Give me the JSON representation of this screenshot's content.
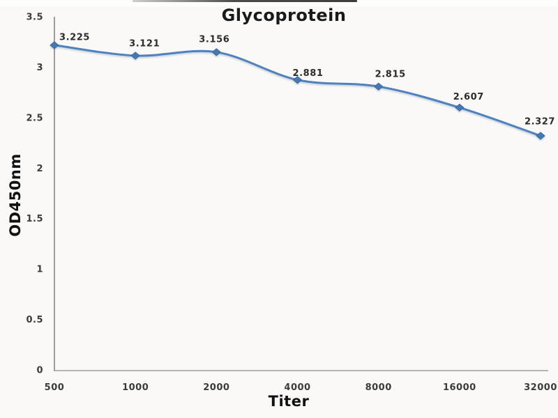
{
  "chart_data": {
    "type": "line",
    "title": "Glycoprotein",
    "xlabel": "Titer",
    "ylabel": "OD450nm",
    "categories": [
      "500",
      "1000",
      "2000",
      "4000",
      "8000",
      "16000",
      "32000"
    ],
    "series": [
      {
        "name": "OD450nm",
        "values": [
          3.225,
          3.121,
          3.156,
          2.881,
          2.815,
          2.607,
          2.327
        ],
        "data_labels": [
          "3.225",
          "3.121",
          "3.156",
          "2.881",
          "2.815",
          "2.607",
          "2.327"
        ]
      }
    ],
    "y_ticks": [
      0,
      0.5,
      1,
      1.5,
      2,
      2.5,
      3,
      3.5
    ],
    "y_tick_labels": [
      "0",
      "0.5",
      "1",
      "1.5",
      "2",
      "2.5",
      "3",
      "3.5"
    ],
    "ylim": [
      0,
      3.5
    ],
    "grid": false,
    "legend_position": "none",
    "line_style": "smooth",
    "marker": "diamond",
    "line_color": "#4f81bd",
    "marker_color": "#4878b0",
    "marker_edge_color": "#3a699f",
    "axis_color": "#9d9d9d",
    "text_color": "#3b3b3b"
  }
}
